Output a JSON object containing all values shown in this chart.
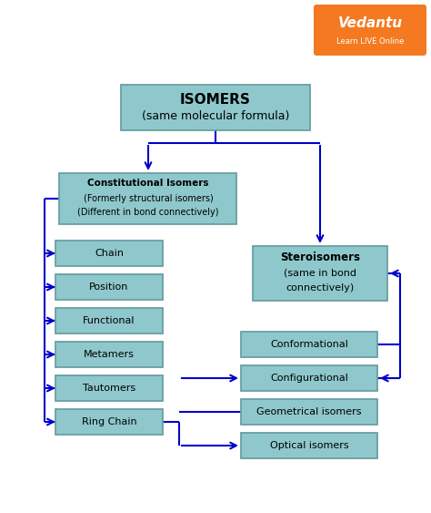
{
  "bg_color": "#ffffff",
  "box_color": "#8ec8cc",
  "box_edge_color": "#6a9fa3",
  "arrow_color": "#0000cc",
  "text_color": "#000000",
  "title_line1": "ISOMERS",
  "title_line2": "(same molecular formula)",
  "constitutional_line1": "Constitutional Isomers",
  "constitutional_line2": "(Formerly structural isomers)",
  "constitutional_line3": "(Different in bond connectively)",
  "stereo_line1": "Steroisomers",
  "stereo_line2": "(same in bond",
  "stereo_line3": "connectively)",
  "left_items": [
    "Chain",
    "Position",
    "Functional",
    "Metamers",
    "Tautomers",
    "Ring Chain"
  ],
  "right_items": [
    "Conformational",
    "Configurational",
    "Geometrical isomers",
    "Optical isomers"
  ],
  "vedantu_orange": "#f47920",
  "fig_w": 4.74,
  "fig_h": 5.63,
  "dpi": 100
}
